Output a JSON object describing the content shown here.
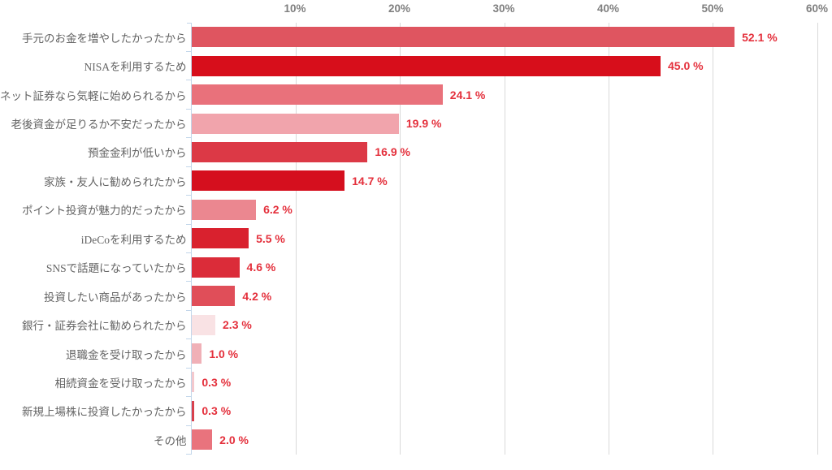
{
  "chart_data": {
    "type": "bar",
    "orientation": "horizontal",
    "title": "",
    "xlabel": "",
    "ylabel": "",
    "xlim": [
      0,
      60
    ],
    "grid": true,
    "legend": false,
    "xticks": [
      "10%",
      "20%",
      "30%",
      "40%",
      "50%",
      "60%"
    ],
    "xtick_values": [
      10,
      20,
      30,
      40,
      50,
      60
    ],
    "categories": [
      "手元のお金を増やしたかったから",
      "NISAを利用するため",
      "ネット証券なら気軽に始められるから",
      "老後資金が足りるか不安だったから",
      "預金金利が低いから",
      "家族・友人に勧められたから",
      "ポイント投資が魅力的だったから",
      "iDeCoを利用するため",
      "SNSで話題になっていたから",
      "投資したい商品があったから",
      "銀行・証券会社に勧められたから",
      "退職金を受け取ったから",
      "相続資金を受け取ったから",
      "新規上場株に投資したかったから",
      "その他"
    ],
    "values": [
      52.1,
      45.0,
      24.1,
      19.9,
      16.9,
      14.7,
      6.2,
      5.5,
      4.6,
      4.2,
      2.3,
      1.0,
      0.3,
      0.3,
      2.0
    ],
    "value_labels": [
      "52.1 %",
      "45.0 %",
      "24.1 %",
      "19.9 %",
      "16.9 %",
      "14.7 %",
      "6.2 %",
      "5.5 %",
      "4.6 %",
      "4.2 %",
      "2.3 %",
      "1.0 %",
      "0.3 %",
      "0.3 %",
      "2.0 %"
    ],
    "bar_colors": [
      "#DF5560",
      "#D70E1B",
      "#E9717B",
      "#F1A4AC",
      "#DC3946",
      "#D50F1E",
      "#EB8790",
      "#D9212E",
      "#DB2C39",
      "#E04E59",
      "#F9E2E4",
      "#F0B0B7",
      "#F4C8CD",
      "#D8414D",
      "#E9737D"
    ]
  },
  "palette": {
    "grid_color": "#D9D9D9",
    "axis_color": "#C2D6EA",
    "tick_label_color": "#7F7F7F",
    "category_label_color": "#646464",
    "value_label_color": "#E4303C",
    "background": "#FFFFFF"
  }
}
